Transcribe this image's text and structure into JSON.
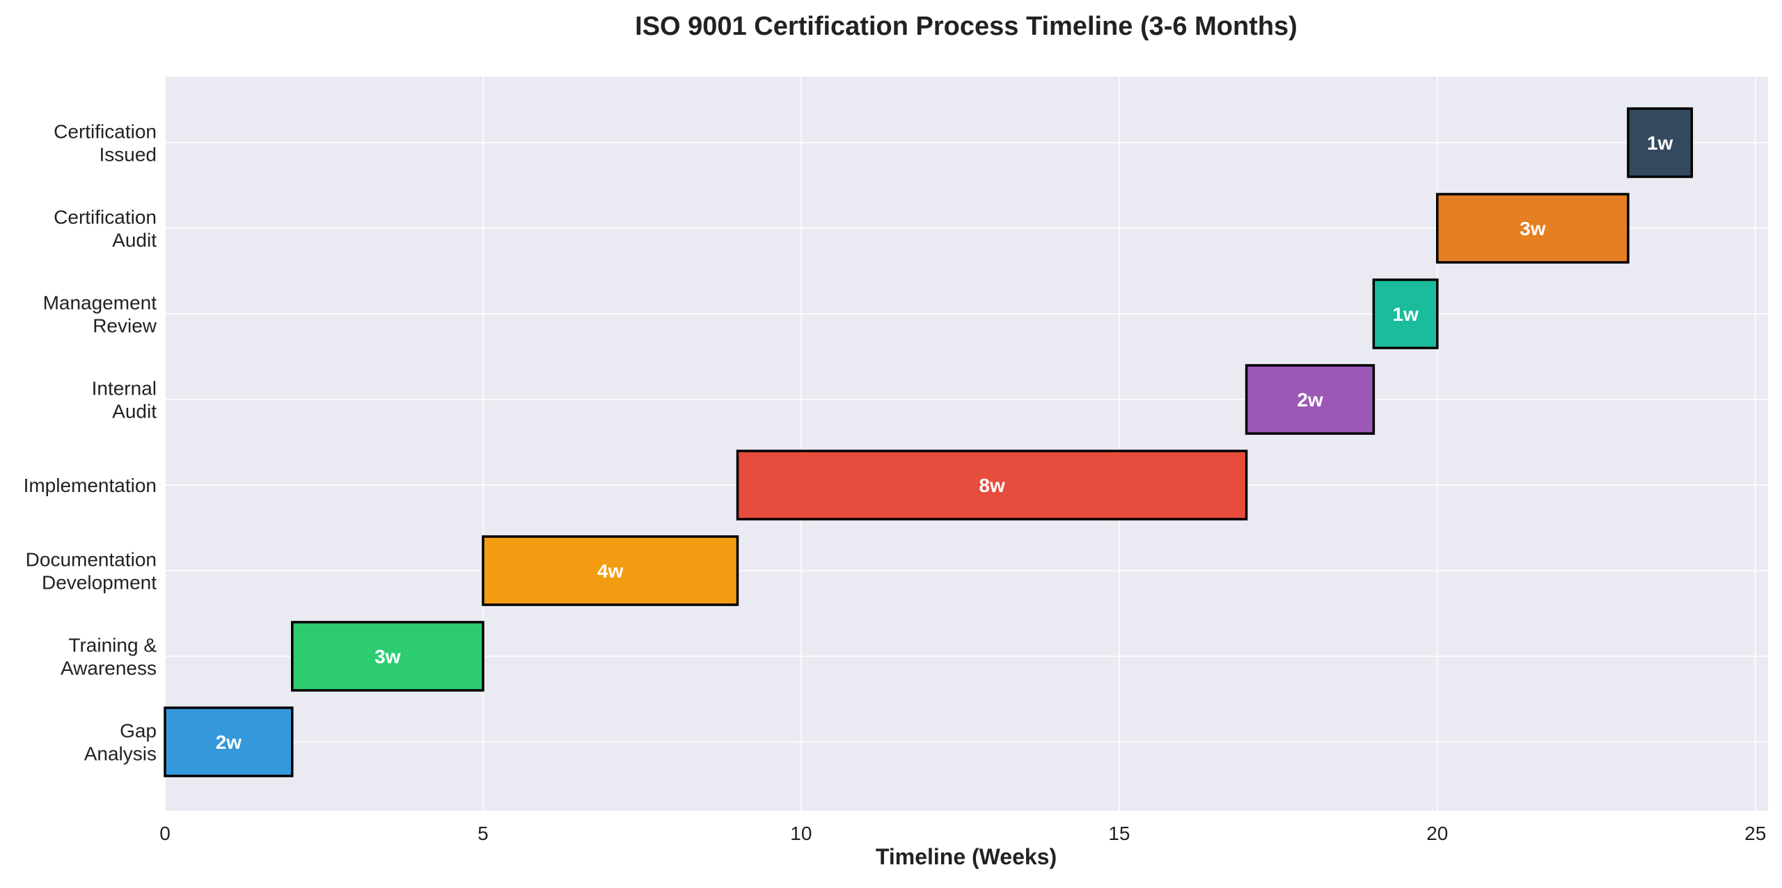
{
  "chart_data": {
    "type": "bar",
    "orientation": "horizontal-gantt",
    "title": "ISO 9001 Certification Process Timeline (3-6 Months)",
    "xlabel": "Timeline (Weeks)",
    "ylabel": "",
    "xlim": [
      0,
      25.2
    ],
    "xticks": [
      0,
      5,
      10,
      15,
      20,
      25
    ],
    "grid": true,
    "background": "#eaeaf2",
    "tasks": [
      {
        "name": [
          "Gap",
          "Analysis"
        ],
        "start": 0,
        "duration": 2,
        "label": "2w",
        "color": "#3498db"
      },
      {
        "name": [
          "Training &",
          "Awareness"
        ],
        "start": 2,
        "duration": 3,
        "label": "3w",
        "color": "#2ecc71"
      },
      {
        "name": [
          "Documentation",
          "Development"
        ],
        "start": 5,
        "duration": 4,
        "label": "4w",
        "color": "#f39c12"
      },
      {
        "name": [
          "Implementation"
        ],
        "start": 9,
        "duration": 8,
        "label": "8w",
        "color": "#e74c3c"
      },
      {
        "name": [
          "Internal",
          "Audit"
        ],
        "start": 17,
        "duration": 2,
        "label": "2w",
        "color": "#9b59b6"
      },
      {
        "name": [
          "Management",
          "Review"
        ],
        "start": 19,
        "duration": 1,
        "label": "1w",
        "color": "#1abc9c"
      },
      {
        "name": [
          "Certification",
          "Audit"
        ],
        "start": 20,
        "duration": 3,
        "label": "3w",
        "color": "#e67e22"
      },
      {
        "name": [
          "Certification",
          "Issued"
        ],
        "start": 23,
        "duration": 1,
        "label": "1w",
        "color": "#34495e"
      }
    ]
  }
}
